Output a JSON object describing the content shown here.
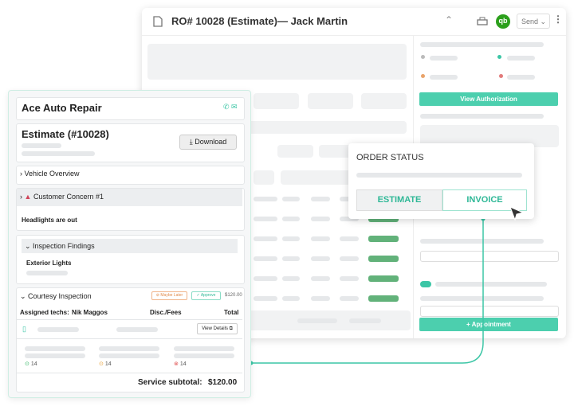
{
  "window": {
    "title": "RO# 10028 (Estimate)— Jack Martin",
    "qb": "qb",
    "send": "Send",
    "view_authorization": "View Authorization",
    "appointment": "+ Appointment"
  },
  "order_status": {
    "title": "ORDER STATUS",
    "tabs": [
      "ESTIMATE",
      "INVOICE"
    ]
  },
  "card": {
    "shop": "Ace Auto Repair",
    "estimate": "Estimate (#10028)",
    "download": "Download",
    "vehicle_overview": "Vehicle Overview",
    "concern": "Customer Concern #1",
    "concern_text": "Headlights are out",
    "findings": "Inspection Findings",
    "findings_item": "Exterior Lights",
    "courtesy": "Courtesy Inspection",
    "maybe_later": "Maybe Later",
    "approve": "Approve",
    "price": "$120.00",
    "techs_label": "Assigned techs:",
    "techs": "Nik Maggos",
    "disc": "Disc./Fees",
    "total": "Total",
    "view_details": "View Details",
    "counts": [
      "14",
      "14",
      "14"
    ],
    "subtotal_label": "Service subtotal:",
    "subtotal": "$120.00"
  }
}
